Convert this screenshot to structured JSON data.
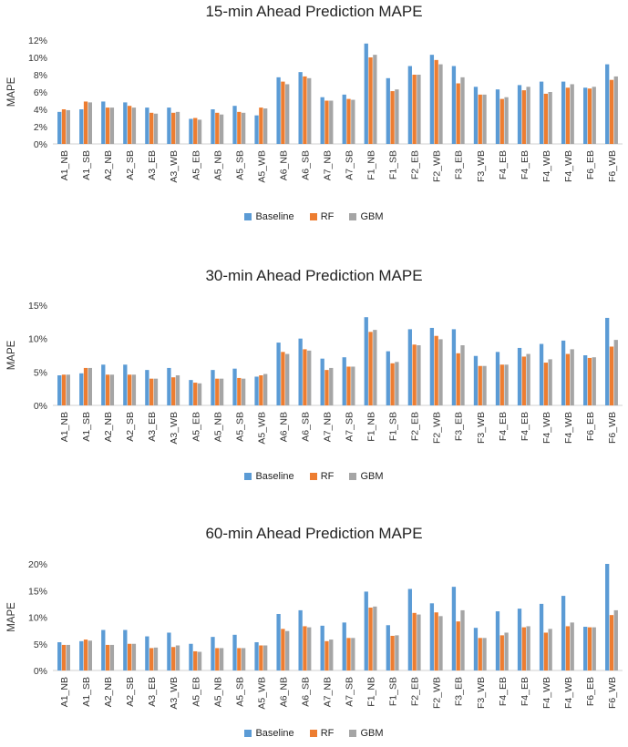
{
  "colors": {
    "Baseline": "#5b9bd5",
    "RF": "#ed7d31",
    "GBM": "#a5a5a5"
  },
  "legend": [
    {
      "name": "Baseline",
      "color": "#5b9bd5"
    },
    {
      "name": "RF",
      "color": "#ed7d31"
    },
    {
      "name": "GBM",
      "color": "#a5a5a5"
    }
  ],
  "chart_data": [
    {
      "type": "bar",
      "title": "15-min Ahead Prediction MAPE",
      "ylabel": "MAPE",
      "xlabel": "",
      "ylim": [
        0,
        12
      ],
      "yticks": [
        "0%",
        "2%",
        "4%",
        "6%",
        "8%",
        "10%",
        "12%"
      ],
      "legend_position": "bottom",
      "categories": [
        "A1_NB",
        "A1_SB",
        "A2_NB",
        "A2_SB",
        "A3_EB",
        "A3_WB",
        "A5_EB",
        "A5_NB",
        "A5_SB",
        "A5_WB",
        "A6_NB",
        "A6_SB",
        "A7_NB",
        "A7_SB",
        "F1_NB",
        "F1_SB",
        "F2_EB",
        "F2_WB",
        "F3_EB",
        "F3_WB",
        "F4_EB",
        "F4_EB",
        "F4_WB",
        "F4_WB",
        "F6_EB",
        "F6_WB"
      ],
      "series": [
        {
          "name": "Baseline",
          "values": [
            3.7,
            4.0,
            4.9,
            4.8,
            4.2,
            4.2,
            2.9,
            4.0,
            4.4,
            3.3,
            7.7,
            8.3,
            5.4,
            5.7,
            11.6,
            7.6,
            9.0,
            10.3,
            9.0,
            6.6,
            6.3,
            6.8,
            7.2,
            7.2,
            6.5,
            9.2
          ]
        },
        {
          "name": "RF",
          "values": [
            4.0,
            4.9,
            4.2,
            4.4,
            3.6,
            3.6,
            3.0,
            3.6,
            3.7,
            4.2,
            7.2,
            7.8,
            5.0,
            5.2,
            10.0,
            6.1,
            8.0,
            9.7,
            7.0,
            5.7,
            5.2,
            6.2,
            5.8,
            6.5,
            6.4,
            7.4
          ]
        },
        {
          "name": "GBM",
          "values": [
            3.9,
            4.8,
            4.2,
            4.2,
            3.5,
            3.7,
            2.8,
            3.4,
            3.6,
            4.1,
            6.9,
            7.6,
            5.0,
            5.1,
            10.3,
            6.3,
            8.0,
            9.2,
            7.7,
            5.7,
            5.4,
            6.6,
            6.0,
            6.9,
            6.6,
            7.8
          ]
        }
      ]
    },
    {
      "type": "bar",
      "title": "30-min Ahead Prediction MAPE",
      "ylabel": "MAPE",
      "xlabel": "",
      "ylim": [
        0,
        15
      ],
      "yticks": [
        "0%",
        "5%",
        "10%",
        "15%"
      ],
      "legend_position": "bottom",
      "categories": [
        "A1_NB",
        "A1_SB",
        "A2_NB",
        "A2_SB",
        "A3_EB",
        "A3_WB",
        "A5_EB",
        "A5_NB",
        "A5_SB",
        "A5_WB",
        "A6_NB",
        "A6_SB",
        "A7_NB",
        "A7_SB",
        "F1_NB",
        "F1_SB",
        "F2_EB",
        "F2_WB",
        "F3_EB",
        "F3_WB",
        "F4_EB",
        "F4_EB",
        "F4_WB",
        "F4_WB",
        "F6_EB",
        "F6_WB"
      ],
      "series": [
        {
          "name": "Baseline",
          "values": [
            4.5,
            4.8,
            6.1,
            6.1,
            5.3,
            5.6,
            3.8,
            5.3,
            5.5,
            4.3,
            9.4,
            10.0,
            7.0,
            7.2,
            13.2,
            8.1,
            11.4,
            11.6,
            11.4,
            7.4,
            8.0,
            8.6,
            9.2,
            9.7,
            7.5,
            13.1
          ]
        },
        {
          "name": "RF",
          "values": [
            4.6,
            5.6,
            4.6,
            4.6,
            4.0,
            4.2,
            3.4,
            4.0,
            4.1,
            4.5,
            8.0,
            8.4,
            5.3,
            5.8,
            11.0,
            6.3,
            9.1,
            10.4,
            7.8,
            5.9,
            6.1,
            7.3,
            6.4,
            7.7,
            7.1,
            8.8
          ]
        },
        {
          "name": "GBM",
          "values": [
            4.6,
            5.6,
            4.6,
            4.6,
            4.0,
            4.5,
            3.3,
            4.0,
            4.0,
            4.7,
            7.7,
            8.2,
            5.6,
            5.8,
            11.3,
            6.5,
            9.0,
            9.9,
            9.0,
            5.9,
            6.1,
            7.7,
            6.9,
            8.4,
            7.2,
            9.8
          ]
        }
      ]
    },
    {
      "type": "bar",
      "title": "60-min Ahead Prediction MAPE",
      "ylabel": "MAPE",
      "xlabel": "",
      "ylim": [
        0,
        20
      ],
      "yticks": [
        "0%",
        "5%",
        "10%",
        "15%",
        "20%"
      ],
      "legend_position": "bottom",
      "categories": [
        "A1_NB",
        "A1_SB",
        "A2_NB",
        "A2_SB",
        "A3_EB",
        "A3_WB",
        "A5_EB",
        "A5_NB",
        "A5_SB",
        "A5_WB",
        "A6_NB",
        "A6_SB",
        "A7_NB",
        "A7_SB",
        "F1_NB",
        "F1_SB",
        "F2_EB",
        "F2_WB",
        "F3_EB",
        "F3_WB",
        "F4_EB",
        "F4_EB",
        "F4_WB",
        "F4_WB",
        "F6_EB",
        "F6_WB"
      ],
      "series": [
        {
          "name": "Baseline",
          "values": [
            5.3,
            5.5,
            7.6,
            7.6,
            6.4,
            7.1,
            5.0,
            6.3,
            6.7,
            5.3,
            10.6,
            11.3,
            8.4,
            9.0,
            14.8,
            8.5,
            15.3,
            12.6,
            15.7,
            8.0,
            11.1,
            11.6,
            12.5,
            14.0,
            8.2,
            20.0
          ]
        },
        {
          "name": "RF",
          "values": [
            4.8,
            5.8,
            4.8,
            5.0,
            4.2,
            4.4,
            3.6,
            4.2,
            4.2,
            4.7,
            7.8,
            8.3,
            5.5,
            6.1,
            11.8,
            6.5,
            10.8,
            10.9,
            9.2,
            6.1,
            6.6,
            8.1,
            7.1,
            8.3,
            8.1,
            10.4
          ]
        },
        {
          "name": "GBM",
          "values": [
            4.8,
            5.6,
            4.8,
            5.0,
            4.3,
            4.7,
            3.5,
            4.2,
            4.2,
            4.7,
            7.4,
            8.1,
            5.8,
            6.1,
            12.0,
            6.6,
            10.5,
            10.2,
            11.3,
            6.1,
            7.1,
            8.3,
            7.8,
            9.0,
            8.1,
            11.3
          ]
        }
      ]
    }
  ]
}
